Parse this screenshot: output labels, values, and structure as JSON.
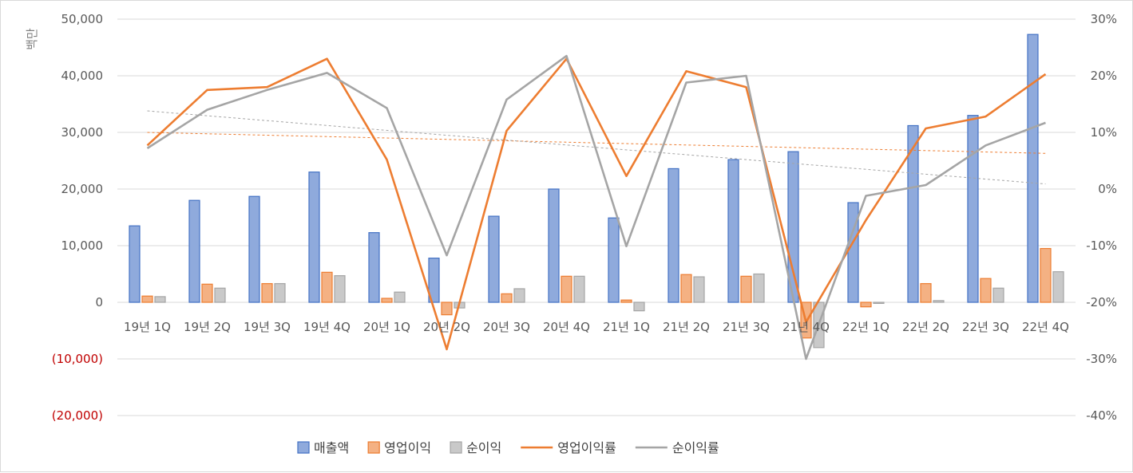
{
  "chart_data": {
    "type": "bar",
    "ylabel": "백만",
    "categories": [
      "19년 1Q",
      "19년 2Q",
      "19년 3Q",
      "19년 4Q",
      "20년 1Q",
      "20년 2Q",
      "20년 3Q",
      "20년 4Q",
      "21년 1Q",
      "21년 2Q",
      "21년 3Q",
      "21년 4Q",
      "22년 1Q",
      "22년 2Q",
      "22년 3Q",
      "22년 4Q"
    ],
    "y_left": {
      "ylim": [
        -20000,
        50000
      ],
      "ticks": [
        "(20,000)",
        "(10,000)",
        "0",
        "10,000",
        "20,000",
        "30,000",
        "40,000",
        "50,000"
      ],
      "tick_values": [
        -20000,
        -10000,
        0,
        10000,
        20000,
        30000,
        40000,
        50000
      ]
    },
    "y_right": {
      "ylim": [
        -0.4,
        0.3
      ],
      "ticks": [
        "-40%",
        "-30%",
        "-20%",
        "-10%",
        "0%",
        "10%",
        "20%",
        "30%"
      ],
      "tick_values": [
        -0.4,
        -0.3,
        -0.2,
        -0.1,
        0,
        0.1,
        0.2,
        0.3
      ]
    },
    "bar_series": [
      {
        "name": "매출액",
        "color": "#4472c4",
        "fill": "#8faadc",
        "values": [
          13500,
          18000,
          18700,
          23000,
          12300,
          7800,
          15200,
          20000,
          14900,
          23600,
          25200,
          26600,
          17600,
          31200,
          33000,
          47300
        ]
      },
      {
        "name": "영업이익",
        "color": "#ed7d31",
        "fill": "#f4b183",
        "values": [
          1100,
          3200,
          3300,
          5300,
          700,
          -2200,
          1500,
          4600,
          400,
          4900,
          4600,
          -6300,
          -800,
          3300,
          4200,
          9500
        ]
      },
      {
        "name": "순이익",
        "color": "#a5a5a5",
        "fill": "#c9c9c9",
        "values": [
          1000,
          2500,
          3300,
          4700,
          1800,
          -1000,
          2400,
          4600,
          -1500,
          4500,
          5000,
          -8000,
          -200,
          300,
          2500,
          5400
        ]
      }
    ],
    "line_series": [
      {
        "name": "영업이익률",
        "color": "#ed7d31",
        "values": [
          0.077,
          0.175,
          0.18,
          0.23,
          0.052,
          -0.283,
          0.103,
          0.23,
          0.023,
          0.208,
          0.18,
          -0.235,
          -0.055,
          0.107,
          0.128,
          0.203
        ]
      },
      {
        "name": "순이익률",
        "color": "#a5a5a5",
        "values": [
          0.072,
          0.14,
          0.175,
          0.205,
          0.143,
          -0.117,
          0.158,
          0.235,
          -0.101,
          0.188,
          0.2,
          -0.3,
          -0.012,
          0.007,
          0.077,
          0.117
        ]
      }
    ],
    "trendlines": [
      {
        "series": "영업이익률",
        "color": "#ed7d31",
        "start": 0.1,
        "end": 0.063
      },
      {
        "series": "순이익률",
        "color": "#a5a5a5",
        "start": 0.138,
        "end": 0.009
      }
    ],
    "legend_position": "bottom",
    "grid": true
  }
}
